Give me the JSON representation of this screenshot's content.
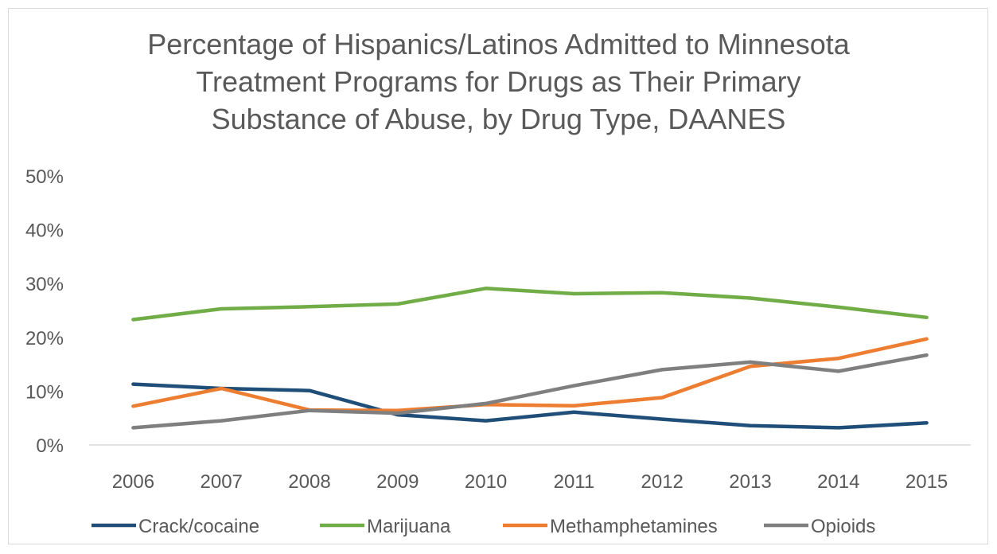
{
  "chart_data": {
    "type": "line",
    "title_lines": [
      "Percentage of Hispanics/Latinos Admitted to Minnesota",
      "Treatment Programs for Drugs as Their Primary",
      "Substance of Abuse, by Drug Type, DAANES"
    ],
    "xlabel": "",
    "ylabel": "",
    "categories": [
      "2006",
      "2007",
      "2008",
      "2009",
      "2010",
      "2011",
      "2012",
      "2013",
      "2014",
      "2015"
    ],
    "ylim": [
      0,
      50
    ],
    "yticks": [
      0,
      10,
      20,
      30,
      40,
      50
    ],
    "ytick_labels": [
      "0%",
      "10%",
      "20%",
      "30%",
      "40%",
      "50%"
    ],
    "grid": false,
    "legend_position": "bottom",
    "series": [
      {
        "name": "Crack/cocaine",
        "color": "#1f4e79",
        "values": [
          11.3,
          10.5,
          10.1,
          5.6,
          4.5,
          6.1,
          4.8,
          3.6,
          3.2,
          4.1
        ]
      },
      {
        "name": "Marijuana",
        "color": "#70ad47",
        "values": [
          23.3,
          25.3,
          25.7,
          26.2,
          29.1,
          28.1,
          28.3,
          27.3,
          25.6,
          23.7
        ]
      },
      {
        "name": "Methamphetamines",
        "color": "#ed7d31",
        "values": [
          7.2,
          10.5,
          6.5,
          6.4,
          7.5,
          7.3,
          8.8,
          14.6,
          16.1,
          19.7
        ]
      },
      {
        "name": "Opioids",
        "color": "#7f7f7f",
        "values": [
          3.2,
          4.5,
          6.4,
          5.9,
          7.7,
          11.0,
          14.0,
          15.4,
          13.7,
          16.7
        ]
      }
    ]
  }
}
